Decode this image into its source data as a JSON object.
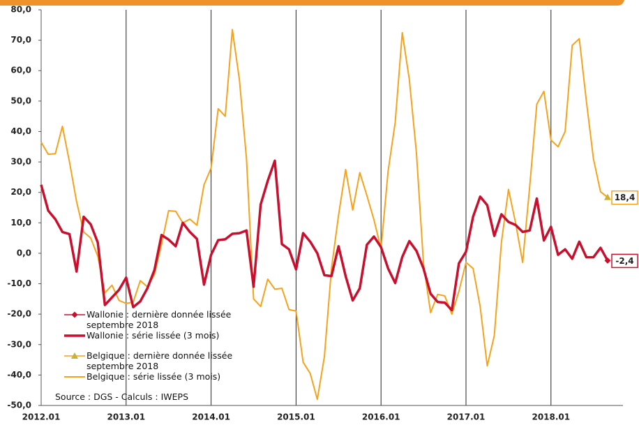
{
  "chart_data": {
    "type": "line",
    "categories": [
      "2012.01",
      null,
      null,
      null,
      null,
      null,
      null,
      null,
      null,
      null,
      null,
      null,
      "2013.01",
      null,
      null,
      null,
      null,
      null,
      null,
      null,
      null,
      null,
      null,
      null,
      "2014.01",
      null,
      null,
      null,
      null,
      null,
      null,
      null,
      null,
      null,
      null,
      null,
      "2015.01",
      null,
      null,
      null,
      null,
      null,
      null,
      null,
      null,
      null,
      null,
      null,
      "2016.01",
      null,
      null,
      null,
      null,
      null,
      null,
      null,
      null,
      null,
      null,
      null,
      "2017.01",
      null,
      null,
      null,
      null,
      null,
      null,
      null,
      null,
      null,
      null,
      null,
      "2018.01",
      null,
      null,
      null,
      null,
      null,
      null,
      null,
      null
    ],
    "series": [
      {
        "name": "Wallonie : dernière donnée lissée septembre 2018",
        "color": "#c8102e",
        "marker": "diamond",
        "values": [
          null,
          null,
          null,
          null,
          null,
          null,
          null,
          null,
          null,
          null,
          null,
          null,
          null,
          null,
          null,
          null,
          null,
          null,
          null,
          null,
          null,
          null,
          null,
          null,
          null,
          null,
          null,
          null,
          null,
          null,
          null,
          null,
          null,
          null,
          null,
          null,
          null,
          null,
          null,
          null,
          null,
          null,
          null,
          null,
          null,
          null,
          null,
          null,
          null,
          null,
          null,
          null,
          null,
          null,
          null,
          null,
          null,
          null,
          null,
          null,
          null,
          null,
          null,
          null,
          null,
          null,
          null,
          null,
          null,
          null,
          null,
          null,
          null,
          null,
          null,
          null,
          null,
          null,
          null,
          null,
          -2.4
        ],
        "value_labels": [
          null,
          null,
          null,
          null,
          null,
          null,
          null,
          null,
          null,
          null,
          null,
          null,
          null,
          null,
          null,
          null,
          null,
          null,
          null,
          null,
          null,
          null,
          null,
          null,
          null,
          null,
          null,
          null,
          null,
          null,
          null,
          null,
          null,
          null,
          null,
          null,
          null,
          null,
          null,
          null,
          null,
          null,
          null,
          null,
          null,
          null,
          null,
          null,
          null,
          null,
          null,
          null,
          null,
          null,
          null,
          null,
          null,
          null,
          null,
          null,
          null,
          null,
          null,
          null,
          null,
          null,
          null,
          null,
          null,
          null,
          null,
          null,
          null,
          null,
          null,
          null,
          null,
          null,
          null,
          null,
          "-2,4"
        ]
      },
      {
        "name": "Wallonie : série lissée (3 mois)",
        "color": "#c8102e",
        "line_width": 3.5,
        "values": [
          22.5,
          14,
          11.2,
          7,
          6.3,
          -6,
          12,
          9.5,
          3.5,
          -17,
          -14.5,
          -12,
          -8,
          -17.7,
          -15.8,
          -11.5,
          -5.5,
          6,
          4.5,
          2.3,
          10,
          7,
          4.7,
          -10.3,
          -0.5,
          4.3,
          4.6,
          6.4,
          6.6,
          7.5,
          -11,
          16,
          23.8,
          30.4,
          3,
          1.3,
          -5.3,
          6.6,
          3.8,
          0,
          -7.2,
          -7.5,
          2.3,
          -7.5,
          -15.5,
          -11.5,
          2.8,
          5.5,
          2,
          -5,
          -9.8,
          -1.2,
          4,
          0.8,
          -5,
          -13.3,
          -16,
          -16.2,
          -18.7,
          -3.3,
          0.5,
          12,
          18.6,
          15.8,
          5.7,
          12.8,
          10.3,
          9.3,
          7,
          7.5,
          18,
          4.2,
          8.7,
          -0.5,
          1.3,
          -1.8,
          3.8,
          -1.3,
          -1.3,
          1.8,
          -2.4
        ]
      },
      {
        "name": "Belgique : dernière donnée lissée septembre 2018",
        "color": "#c9b037",
        "marker": "triangle",
        "values": [
          null,
          null,
          null,
          null,
          null,
          null,
          null,
          null,
          null,
          null,
          null,
          null,
          null,
          null,
          null,
          null,
          null,
          null,
          null,
          null,
          null,
          null,
          null,
          null,
          null,
          null,
          null,
          null,
          null,
          null,
          null,
          null,
          null,
          null,
          null,
          null,
          null,
          null,
          null,
          null,
          null,
          null,
          null,
          null,
          null,
          null,
          null,
          null,
          null,
          null,
          null,
          null,
          null,
          null,
          null,
          null,
          null,
          null,
          null,
          null,
          null,
          null,
          null,
          null,
          null,
          null,
          null,
          null,
          null,
          null,
          null,
          null,
          null,
          null,
          null,
          null,
          null,
          null,
          null,
          null,
          18.4
        ],
        "value_labels": [
          null,
          null,
          null,
          null,
          null,
          null,
          null,
          null,
          null,
          null,
          null,
          null,
          null,
          null,
          null,
          null,
          null,
          null,
          null,
          null,
          null,
          null,
          null,
          null,
          null,
          null,
          null,
          null,
          null,
          null,
          null,
          null,
          null,
          null,
          null,
          null,
          null,
          null,
          null,
          null,
          null,
          null,
          null,
          null,
          null,
          null,
          null,
          null,
          null,
          null,
          null,
          null,
          null,
          null,
          null,
          null,
          null,
          null,
          null,
          null,
          null,
          null,
          null,
          null,
          null,
          null,
          null,
          null,
          null,
          null,
          null,
          null,
          null,
          null,
          null,
          null,
          null,
          null,
          null,
          null,
          "18,4"
        ]
      },
      {
        "name": "Belgique : série lissée (3 mois)",
        "color": "#f5a21c",
        "line_width": 2,
        "values": [
          36.5,
          32.5,
          32.7,
          41.7,
          30,
          17,
          7,
          5,
          -1,
          -13,
          -10.5,
          -15.5,
          -16.5,
          -16,
          -9,
          -11,
          -7,
          3,
          14,
          13.8,
          10,
          11.2,
          9.2,
          22.5,
          28,
          47.5,
          45,
          73.5,
          57,
          31,
          -15,
          -17.5,
          -8.5,
          -11.8,
          -11.5,
          -18.5,
          -19,
          -35.8,
          -39.5,
          -48,
          -34,
          -5,
          12.5,
          27.5,
          14.2,
          26.5,
          19,
          11,
          1.5,
          27,
          43,
          72.5,
          57,
          33,
          -3.5,
          -19.5,
          -13.5,
          -14,
          -20,
          -12.5,
          -3,
          -5,
          -17.5,
          -37,
          -27,
          3.5,
          21,
          10,
          -3,
          22,
          49,
          53.2,
          37.2,
          35,
          40,
          68.3,
          70.5,
          50,
          31,
          20.2,
          18.4
        ]
      }
    ],
    "ylim": [
      -50,
      80
    ],
    "yticks": [
      {
        "value": -50,
        "label": "-50,0"
      },
      {
        "value": -40,
        "label": "-40,0"
      },
      {
        "value": -30,
        "label": "-30,0"
      },
      {
        "value": -20,
        "label": "-20,0"
      },
      {
        "value": -10,
        "label": "-10,0"
      },
      {
        "value": 0,
        "label": "0,0"
      },
      {
        "value": 10,
        "label": "10,0"
      },
      {
        "value": 20,
        "label": "20,0"
      },
      {
        "value": 30,
        "label": "30,0"
      },
      {
        "value": 40,
        "label": "40,0"
      },
      {
        "value": 50,
        "label": "50,0"
      },
      {
        "value": 60,
        "label": "60,0"
      },
      {
        "value": 70,
        "label": "70,0"
      },
      {
        "value": 80,
        "label": "80,0"
      }
    ],
    "legend": "lower left",
    "annotation": "Source : DGS - Calculs : IWEPS"
  }
}
